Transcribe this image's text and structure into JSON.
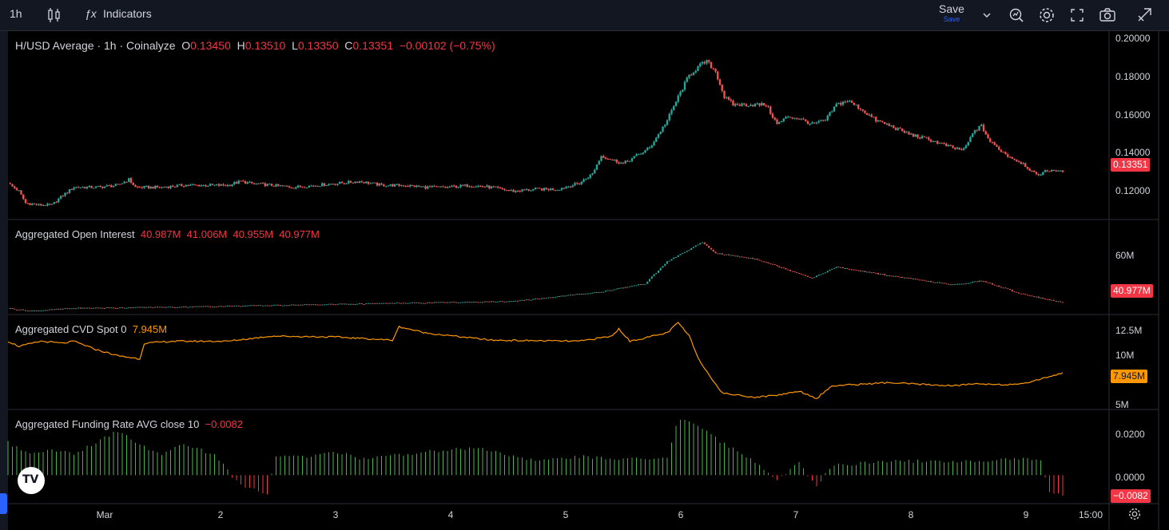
{
  "toolbar": {
    "interval": "1h",
    "indicators_label": "Indicators",
    "save_label": "Save",
    "save_sub": "Save",
    "icons": [
      "candles-icon",
      "fx-icon",
      "chevron-down-icon",
      "alert-icon",
      "gear-icon",
      "fullscreen-icon",
      "camera-icon",
      "publish-icon"
    ]
  },
  "legend": {
    "title": "H/USD Average · 1h · Coinalyze",
    "o_label": "O",
    "o": "0.13450",
    "h_label": "H",
    "h": "0.13510",
    "l_label": "L",
    "l": "0.13350",
    "c_label": "C",
    "c": "0.13351",
    "change": "−0.00102 (−0.75%)"
  },
  "panes": {
    "oi": {
      "title": "Aggregated Open Interest",
      "values": "40.987M  41.006M  40.955M  40.977M",
      "tag": "40.977M",
      "ticks": [
        "60M"
      ]
    },
    "cvd": {
      "title": "Aggregated CVD Spot 0",
      "value": "7.945M",
      "tag": "7.945M",
      "ticks": [
        "12.5M",
        "10M",
        "5M"
      ]
    },
    "funding": {
      "title": "Aggregated Funding Rate AVG close 10",
      "value": "−0.0082",
      "tag": "−0.0082",
      "ticks": [
        "0.0200",
        "0.0000"
      ]
    }
  },
  "price_axis": {
    "ticks": [
      "0.20000",
      "0.18000",
      "0.16000",
      "0.14000",
      "0.12000"
    ],
    "last_price_tag": "0.13351"
  },
  "time_axis": {
    "ticks": [
      "Mar",
      "2",
      "3",
      "4",
      "5",
      "6",
      "7",
      "8",
      "9",
      "15:00"
    ]
  },
  "colors": {
    "up": "#26a69a",
    "down": "#ef5350",
    "cvd": "#ff9800",
    "fund_up": "#4caf50",
    "fund_down": "#f23645",
    "bg": "#000000",
    "panel": "#131722"
  },
  "logo_text": "TV",
  "chart_data": [
    {
      "type": "candlestick",
      "title": "H/USD Average · 1h · Coinalyze",
      "x_ticks": [
        "Mar",
        "2",
        "3",
        "4",
        "5",
        "6",
        "7",
        "8",
        "9",
        "15:00"
      ],
      "ylim": [
        0.11,
        0.205
      ],
      "close_anchors": [
        [
          0,
          0.128
        ],
        [
          5,
          0.124
        ],
        [
          8,
          0.118
        ],
        [
          14,
          0.117
        ],
        [
          20,
          0.117
        ],
        [
          25,
          0.122
        ],
        [
          30,
          0.126
        ],
        [
          40,
          0.126
        ],
        [
          50,
          0.127
        ],
        [
          55,
          0.13
        ],
        [
          58,
          0.126
        ],
        [
          63,
          0.126
        ],
        [
          70,
          0.126
        ],
        [
          80,
          0.127
        ],
        [
          90,
          0.127
        ],
        [
          100,
          0.127
        ],
        [
          106,
          0.129
        ],
        [
          110,
          0.128
        ],
        [
          120,
          0.127
        ],
        [
          130,
          0.126
        ],
        [
          140,
          0.127
        ],
        [
          150,
          0.128
        ],
        [
          160,
          0.129
        ],
        [
          170,
          0.127
        ],
        [
          180,
          0.127
        ],
        [
          190,
          0.126
        ],
        [
          200,
          0.126
        ],
        [
          210,
          0.127
        ],
        [
          220,
          0.126
        ],
        [
          230,
          0.124
        ],
        [
          240,
          0.125
        ],
        [
          250,
          0.125
        ],
        [
          260,
          0.128
        ],
        [
          266,
          0.133
        ],
        [
          270,
          0.142
        ],
        [
          280,
          0.138
        ],
        [
          292,
          0.146
        ],
        [
          300,
          0.16
        ],
        [
          305,
          0.172
        ],
        [
          310,
          0.183
        ],
        [
          315,
          0.188
        ],
        [
          318,
          0.19
        ],
        [
          322,
          0.185
        ],
        [
          326,
          0.172
        ],
        [
          330,
          0.168
        ],
        [
          335,
          0.168
        ],
        [
          340,
          0.168
        ],
        [
          345,
          0.168
        ],
        [
          350,
          0.158
        ],
        [
          355,
          0.162
        ],
        [
          360,
          0.161
        ],
        [
          366,
          0.158
        ],
        [
          372,
          0.16
        ],
        [
          377,
          0.168
        ],
        [
          382,
          0.17
        ],
        [
          388,
          0.166
        ],
        [
          395,
          0.16
        ],
        [
          402,
          0.157
        ],
        [
          410,
          0.153
        ],
        [
          420,
          0.15
        ],
        [
          430,
          0.146
        ],
        [
          435,
          0.145
        ],
        [
          440,
          0.155
        ],
        [
          443,
          0.157
        ],
        [
          447,
          0.149
        ],
        [
          455,
          0.142
        ],
        [
          462,
          0.138
        ],
        [
          468,
          0.132
        ],
        [
          472,
          0.134
        ],
        [
          476,
          0.135
        ],
        [
          480,
          0.1335
        ]
      ]
    },
    {
      "type": "bar",
      "title": "Aggregated Open Interest",
      "unit": "M",
      "ylim": [
        37,
        71
      ],
      "anchors": [
        [
          0,
          39
        ],
        [
          10,
          38
        ],
        [
          30,
          39
        ],
        [
          80,
          39.5
        ],
        [
          150,
          40.5
        ],
        [
          230,
          41.5
        ],
        [
          270,
          45
        ],
        [
          290,
          48
        ],
        [
          300,
          56
        ],
        [
          316,
          63
        ],
        [
          322,
          59
        ],
        [
          340,
          57
        ],
        [
          355,
          53
        ],
        [
          366,
          50
        ],
        [
          377,
          54
        ],
        [
          400,
          51
        ],
        [
          430,
          47.5
        ],
        [
          443,
          49
        ],
        [
          460,
          44.5
        ],
        [
          480,
          41
        ]
      ]
    },
    {
      "type": "line",
      "title": "Aggregated CVD Spot 0",
      "unit": "M",
      "ylim": [
        4.5,
        13.5
      ],
      "anchors": [
        [
          0,
          11.0
        ],
        [
          5,
          10.5
        ],
        [
          15,
          11.0
        ],
        [
          25,
          10.8
        ],
        [
          30,
          11.0
        ],
        [
          40,
          10.2
        ],
        [
          50,
          9.6
        ],
        [
          60,
          9.3
        ],
        [
          62,
          10.8
        ],
        [
          75,
          11.0
        ],
        [
          100,
          11.0
        ],
        [
          120,
          11.5
        ],
        [
          150,
          11.4
        ],
        [
          175,
          11.1
        ],
        [
          178,
          12.4
        ],
        [
          190,
          11.8
        ],
        [
          220,
          11.1
        ],
        [
          260,
          11.0
        ],
        [
          275,
          11.5
        ],
        [
          278,
          12.2
        ],
        [
          283,
          11.0
        ],
        [
          300,
          11.8
        ],
        [
          305,
          12.8
        ],
        [
          310,
          11.5
        ],
        [
          315,
          9.0
        ],
        [
          325,
          6.0
        ],
        [
          340,
          5.6
        ],
        [
          350,
          5.8
        ],
        [
          360,
          6.2
        ],
        [
          368,
          5.5
        ],
        [
          375,
          6.7
        ],
        [
          400,
          7.0
        ],
        [
          430,
          6.7
        ],
        [
          440,
          6.9
        ],
        [
          460,
          6.8
        ],
        [
          480,
          7.945
        ]
      ]
    },
    {
      "type": "bar",
      "title": "Aggregated Funding Rate AVG close 10",
      "ylim": [
        -0.012,
        0.028
      ],
      "anchors": [
        [
          0,
          0.014
        ],
        [
          10,
          0.009
        ],
        [
          20,
          0.011
        ],
        [
          30,
          0.009
        ],
        [
          40,
          0.014
        ],
        [
          50,
          0.019
        ],
        [
          60,
          0.013
        ],
        [
          70,
          0.009
        ],
        [
          80,
          0.014
        ],
        [
          95,
          0.008
        ],
        [
          105,
          -0.004
        ],
        [
          115,
          -0.007
        ],
        [
          118,
          -0.008
        ],
        [
          122,
          0.008
        ],
        [
          135,
          0.008
        ],
        [
          150,
          0.01
        ],
        [
          160,
          0.007
        ],
        [
          180,
          0.009
        ],
        [
          200,
          0.011
        ],
        [
          215,
          0.012
        ],
        [
          225,
          0.009
        ],
        [
          240,
          0.006
        ],
        [
          260,
          0.008
        ],
        [
          280,
          0.007
        ],
        [
          300,
          0.007
        ],
        [
          305,
          0.025
        ],
        [
          318,
          0.019
        ],
        [
          325,
          0.014
        ],
        [
          340,
          0.006
        ],
        [
          350,
          -0.002
        ],
        [
          360,
          0.005
        ],
        [
          368,
          -0.005
        ],
        [
          375,
          0.004
        ],
        [
          400,
          0.006
        ],
        [
          430,
          0.006
        ],
        [
          440,
          0.006
        ],
        [
          460,
          0.007
        ],
        [
          470,
          0.007
        ],
        [
          474,
          -0.008
        ],
        [
          480,
          -0.0082
        ]
      ]
    }
  ]
}
